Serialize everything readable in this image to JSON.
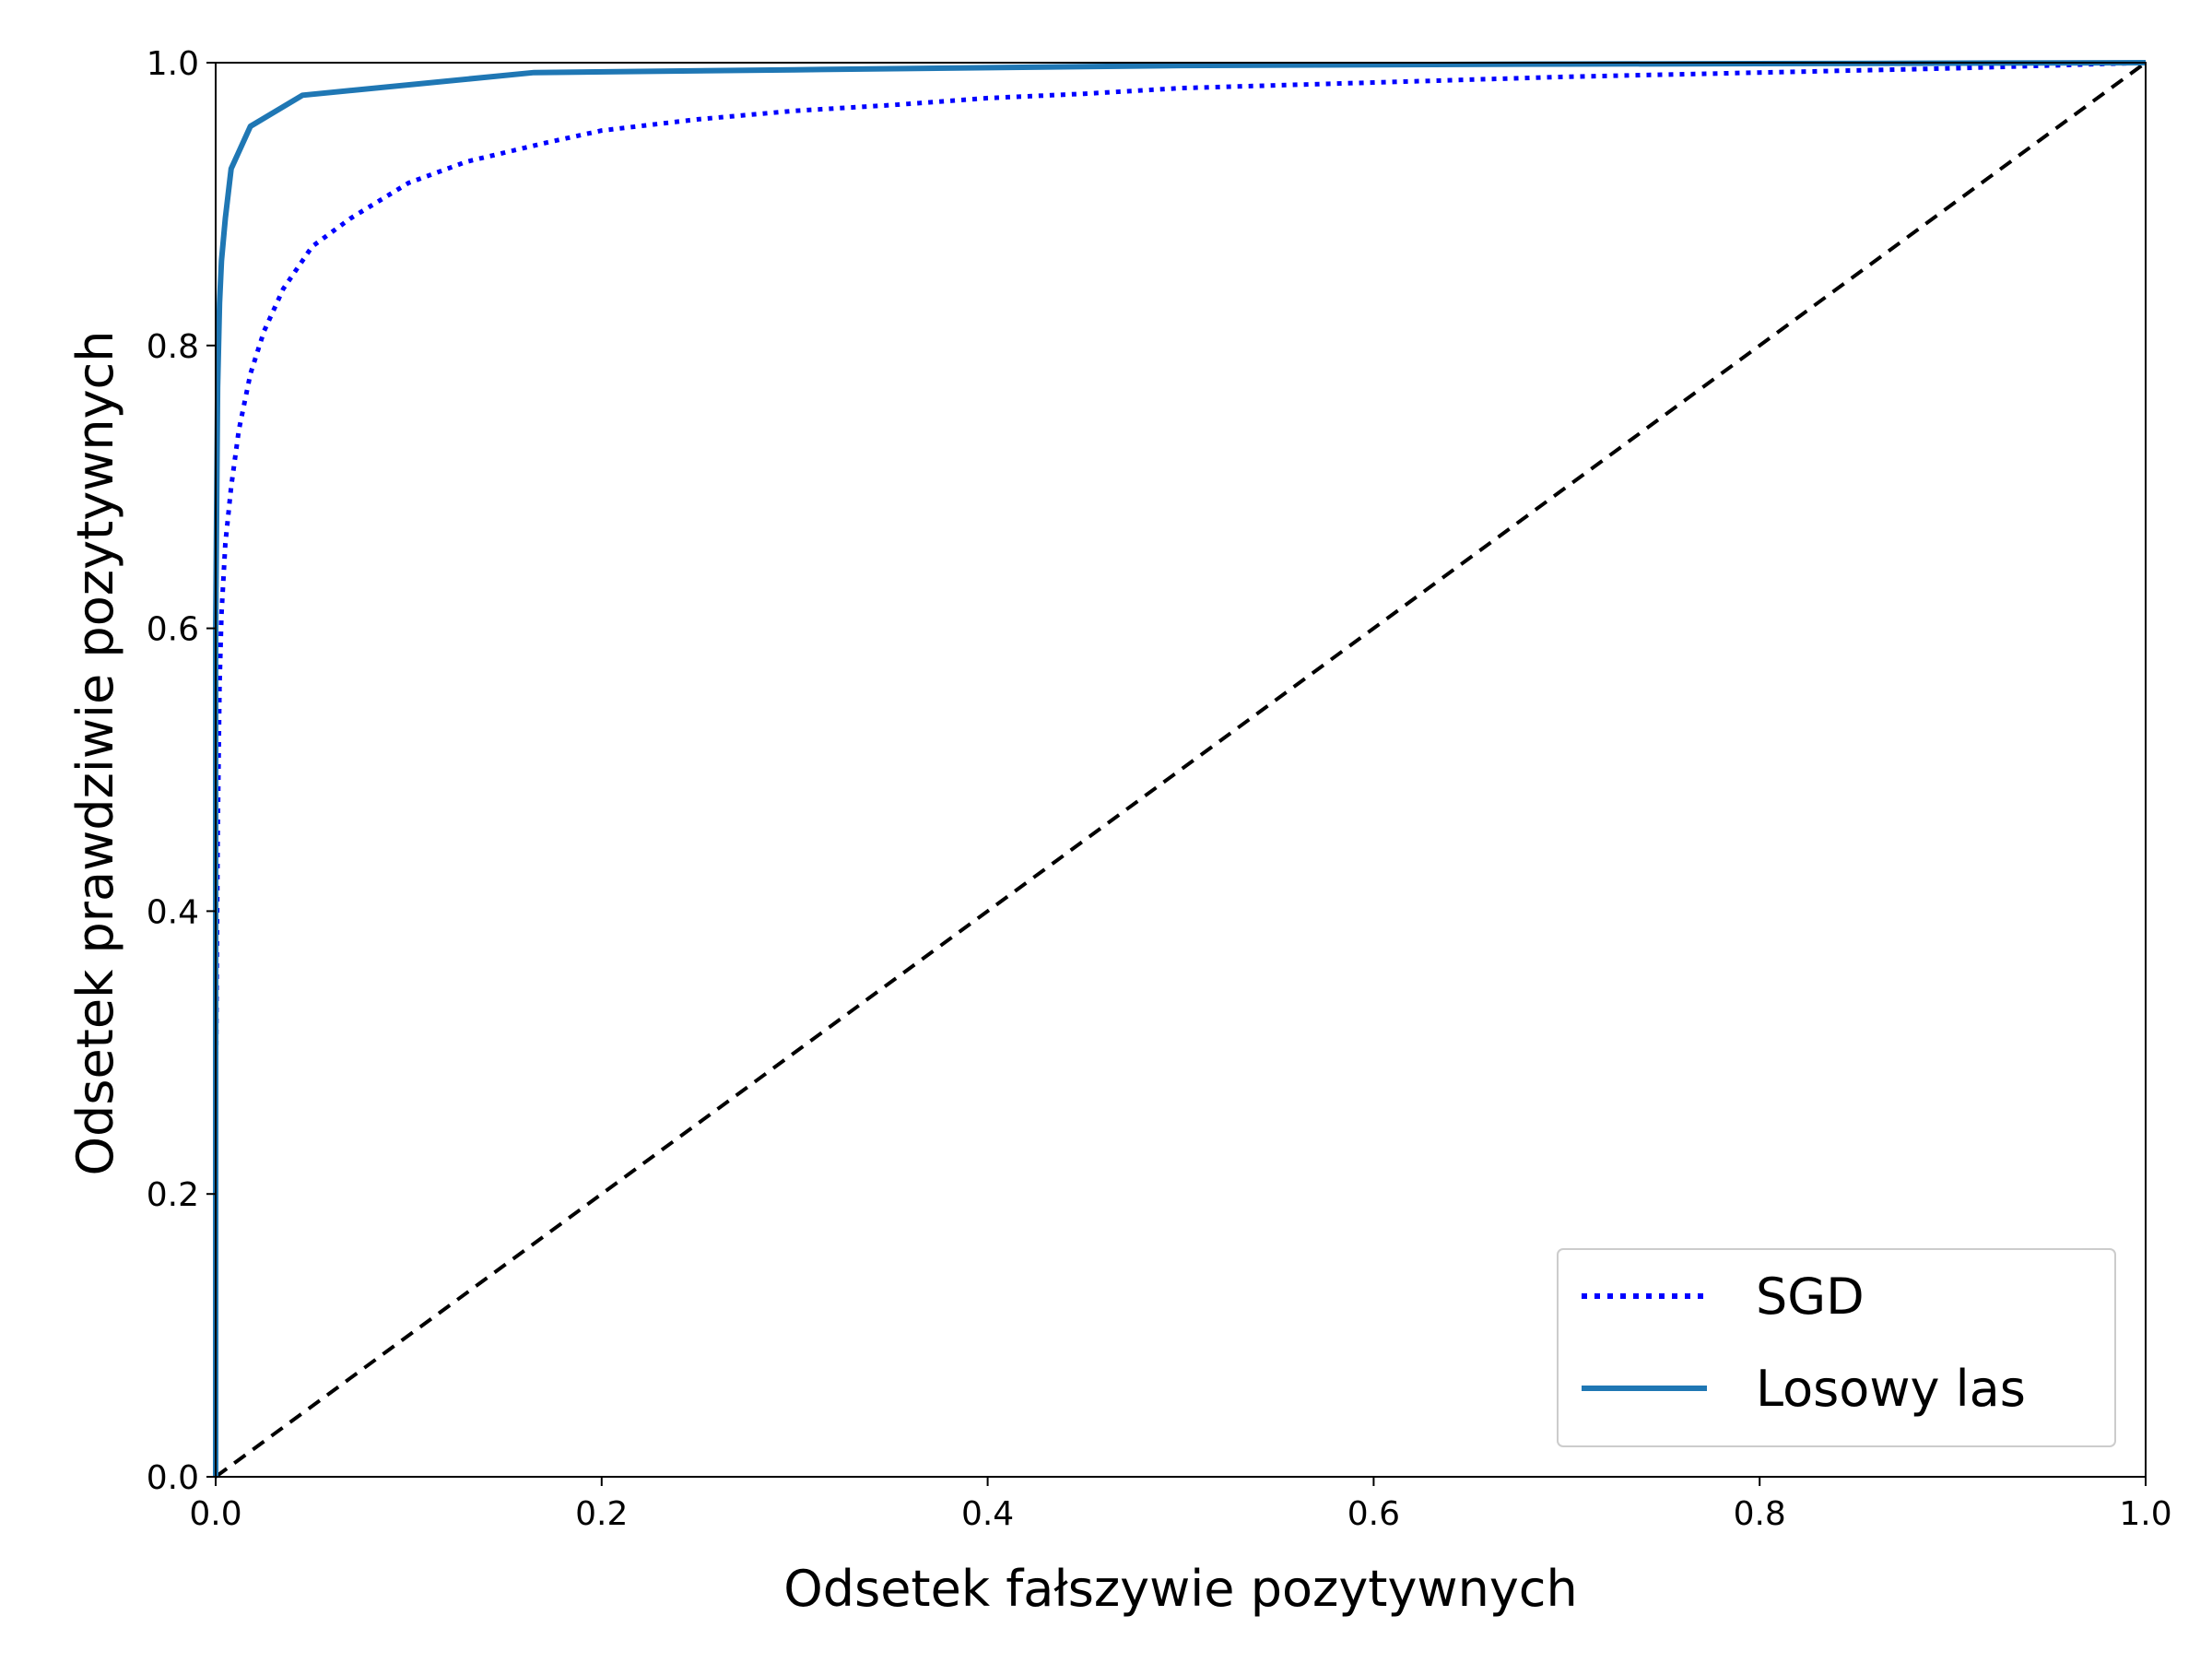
{
  "chart_data": {
    "type": "line",
    "title": "",
    "xlabel": "Odsetek fałszywie pozytywnych",
    "ylabel": "Odsetek prawdziwie pozytywnych",
    "xlim": [
      0.0,
      1.0
    ],
    "ylim": [
      0.0,
      1.0
    ],
    "x_ticks": [
      "0.0",
      "0.2",
      "0.4",
      "0.6",
      "0.8",
      "1.0"
    ],
    "y_ticks": [
      "0.0",
      "0.2",
      "0.4",
      "0.6",
      "0.8",
      "1.0"
    ],
    "grid": false,
    "legend_position": "lower-right",
    "series": [
      {
        "name": "SGD",
        "style": "dotted",
        "color": "#0000ff",
        "x": [
          0.0,
          0.0,
          0.001,
          0.002,
          0.003,
          0.005,
          0.008,
          0.012,
          0.018,
          0.025,
          0.035,
          0.05,
          0.07,
          0.1,
          0.13,
          0.17,
          0.2,
          0.25,
          0.3,
          0.35,
          0.4,
          0.45,
          0.5,
          0.6,
          0.7,
          0.8,
          0.9,
          1.0
        ],
        "y": [
          0.0,
          0.25,
          0.45,
          0.56,
          0.61,
          0.66,
          0.7,
          0.74,
          0.78,
          0.81,
          0.84,
          0.87,
          0.89,
          0.915,
          0.93,
          0.943,
          0.952,
          0.96,
          0.966,
          0.97,
          0.975,
          0.978,
          0.982,
          0.986,
          0.99,
          0.993,
          0.996,
          1.0
        ]
      },
      {
        "name": "Losowy las",
        "style": "solid",
        "color": "#1f77b4",
        "x": [
          0.0,
          0.0,
          0.001,
          0.002,
          0.003,
          0.005,
          0.008,
          0.018,
          0.045,
          0.165,
          0.3,
          0.5,
          0.7,
          1.0
        ],
        "y": [
          0.0,
          0.6,
          0.77,
          0.83,
          0.86,
          0.89,
          0.925,
          0.955,
          0.977,
          0.993,
          0.995,
          0.998,
          0.999,
          1.0
        ]
      },
      {
        "name": "",
        "style": "dashed",
        "color": "#000000",
        "x": [
          0.0,
          1.0
        ],
        "y": [
          0.0,
          1.0
        ]
      }
    ]
  }
}
